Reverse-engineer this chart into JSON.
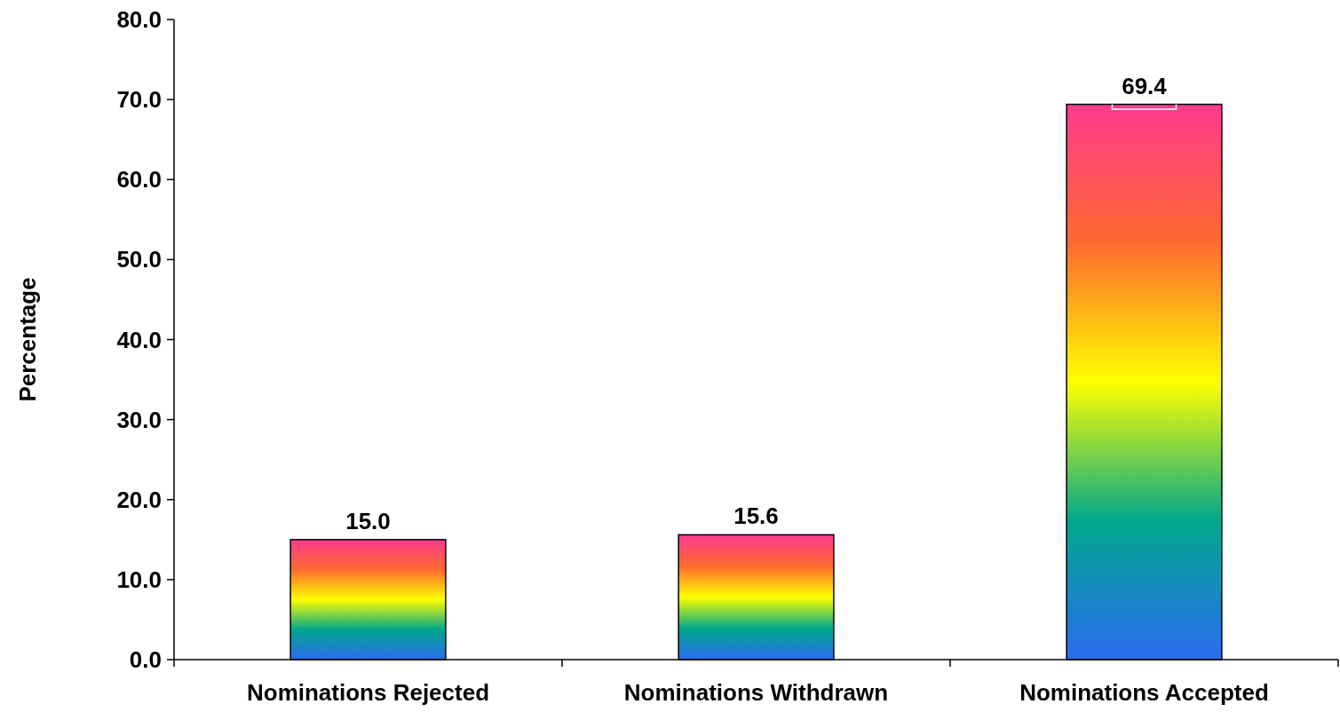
{
  "chart_data": {
    "type": "bar",
    "ylabel": "Percentage",
    "categories": [
      "Nominations Rejected",
      "Nominations Withdrawn",
      "Nominations Accepted"
    ],
    "values": [
      15.0,
      15.6,
      69.4
    ],
    "value_labels": [
      "15.0",
      "15.6",
      "69.4"
    ],
    "errors": [
      null,
      null,
      [
        68.8,
        69.4
      ]
    ],
    "ylim": [
      0,
      80
    ],
    "yticks": [
      {
        "value": 0,
        "label": "0.0"
      },
      {
        "value": 10,
        "label": "10.0"
      },
      {
        "value": 20,
        "label": "20.0"
      },
      {
        "value": 30,
        "label": "30.0"
      },
      {
        "value": 40,
        "label": "40.0"
      },
      {
        "value": 50,
        "label": "50.0"
      },
      {
        "value": 60,
        "label": "60.0"
      },
      {
        "value": 70,
        "label": "70.0"
      },
      {
        "value": 80,
        "label": "80.0"
      }
    ],
    "grid": false
  }
}
